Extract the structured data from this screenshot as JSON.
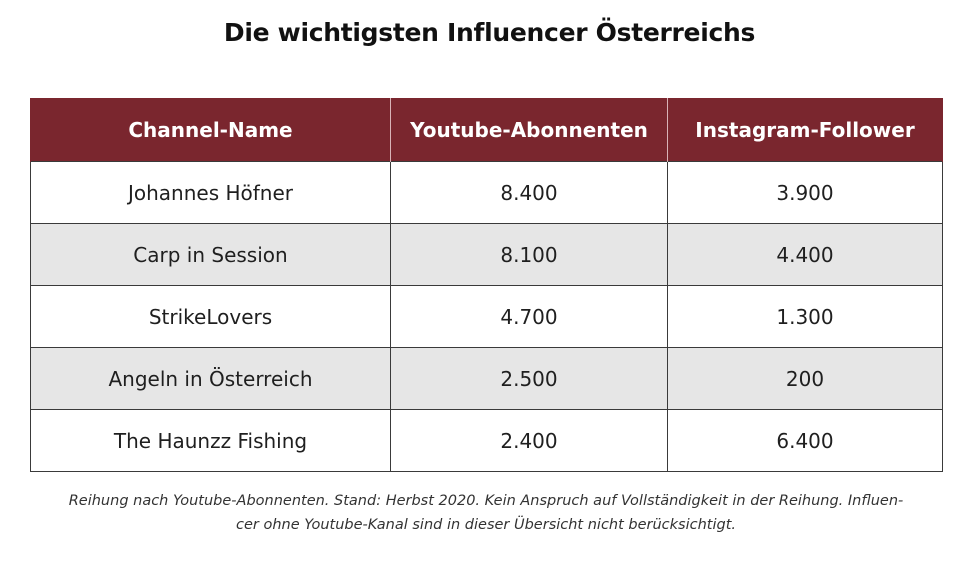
{
  "title": "Die wichtigsten Influencer Österreichs",
  "table": {
    "headers": [
      "Channel-Name",
      "Youtube-Abonnenten",
      "Instagram-Follower"
    ],
    "rows": [
      [
        "Johannes Höfner",
        "8.400",
        "3.900"
      ],
      [
        "Carp in Session",
        "8.100",
        "4.400"
      ],
      [
        "StrikeLovers",
        "4.700",
        "1.300"
      ],
      [
        "Angeln in Österreich",
        "2.500",
        "200"
      ],
      [
        "The Haunzz Fishing",
        "2.400",
        "6.400"
      ]
    ]
  },
  "footnote": {
    "line1": "Reihung nach Youtube-Abonnenten. Stand: Herbst 2020. Kein Anspruch auf Vollständigkeit in der Reihung. Influen-",
    "line2": "cer ohne Youtube-Kanal sind in dieser Übersicht nicht berücksichtigt."
  },
  "colors": {
    "header_bg": "#7a262e",
    "header_text": "#ffffff",
    "alt_row_bg": "#e6e6e6",
    "border": "#3a3a3a"
  },
  "chart_data": {
    "type": "table",
    "title": "Die wichtigsten Influencer Österreichs",
    "columns": [
      "Channel-Name",
      "Youtube-Abonnenten",
      "Instagram-Follower"
    ],
    "rows": [
      {
        "Channel-Name": "Johannes Höfner",
        "Youtube-Abonnenten": 8400,
        "Instagram-Follower": 3900
      },
      {
        "Channel-Name": "Carp in Session",
        "Youtube-Abonnenten": 8100,
        "Instagram-Follower": 4400
      },
      {
        "Channel-Name": "StrikeLovers",
        "Youtube-Abonnenten": 4700,
        "Instagram-Follower": 1300
      },
      {
        "Channel-Name": "Angeln in Österreich",
        "Youtube-Abonnenten": 2500,
        "Instagram-Follower": 200
      },
      {
        "Channel-Name": "The Haunzz Fishing",
        "Youtube-Abonnenten": 2400,
        "Instagram-Follower": 6400
      }
    ]
  }
}
